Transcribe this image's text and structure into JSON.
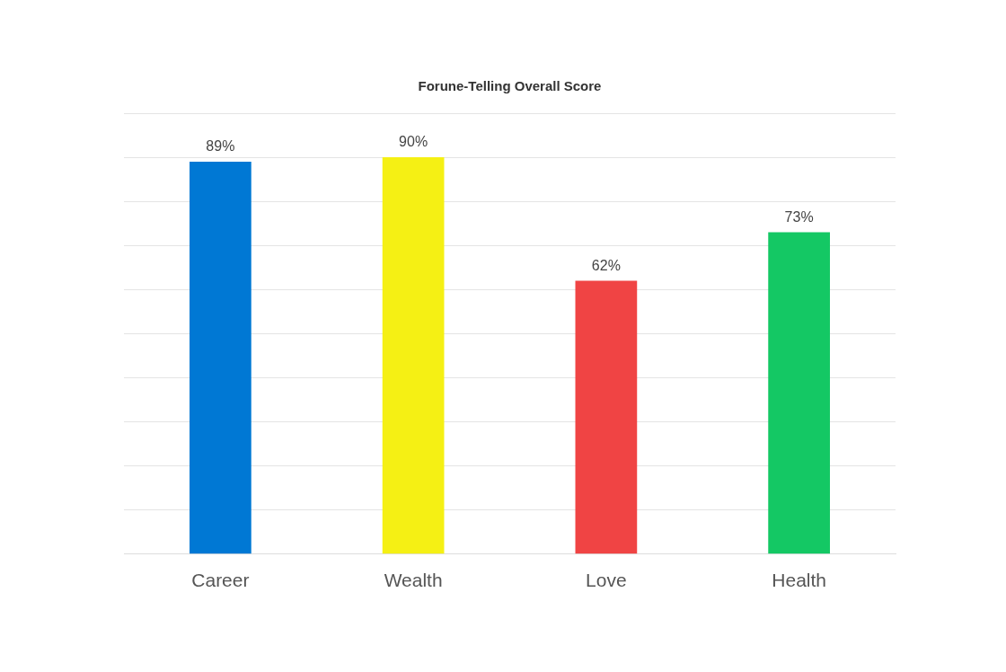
{
  "chart_data": {
    "type": "bar",
    "title": "Forune-Telling Overall Score",
    "categories": [
      "Career",
      "Wealth",
      "Love",
      "Health"
    ],
    "values": [
      89,
      90,
      62,
      73
    ],
    "colors": [
      "#0078d4",
      "#f5f014",
      "#f04444",
      "#14c864"
    ],
    "value_labels": [
      "89%",
      "90%",
      "62%",
      "73%"
    ],
    "ylim": [
      0,
      100
    ],
    "yticks": [
      0,
      10,
      20,
      30,
      40,
      50,
      60,
      70,
      80,
      90,
      100
    ],
    "grid": "y",
    "tick_labels": "x",
    "legend": false
  }
}
